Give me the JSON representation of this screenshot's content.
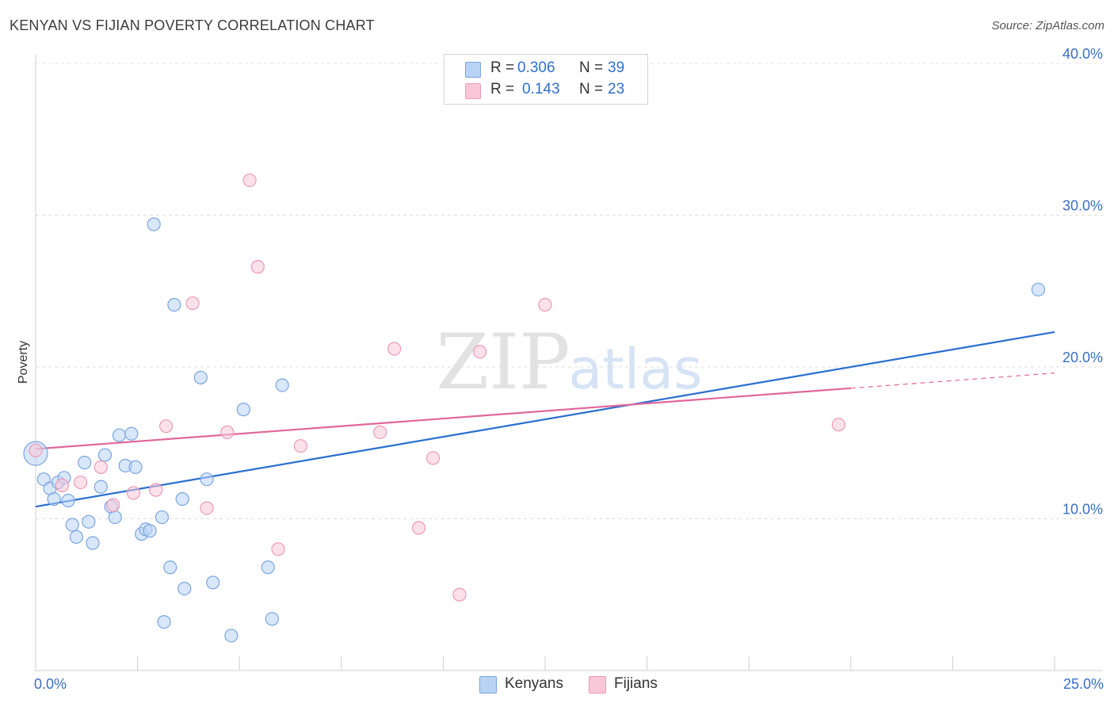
{
  "header": {
    "title": "KENYAN VS FIJIAN POVERTY CORRELATION CHART",
    "source": "Source: ZipAtlas.com"
  },
  "watermark": {
    "zip": "ZIP",
    "atlas": "atlas"
  },
  "legend_top": {
    "rows": [
      {
        "r_label": "R =",
        "r_value": "0.306",
        "n_label": "N =",
        "n_value": "39"
      },
      {
        "r_label": "R =",
        "r_value": "0.143",
        "n_label": "N =",
        "n_value": "23"
      }
    ]
  },
  "legend_bottom": {
    "items": [
      {
        "label": "Kenyans"
      },
      {
        "label": "Fijians"
      }
    ]
  },
  "colors": {
    "kenyan_fill": "#b9d3f5",
    "kenyan_stroke": "#7aa5e0",
    "kenyan_line": "#2a6fd0",
    "fijian_fill": "#f9c8d8",
    "fijian_stroke": "#ec9ab5",
    "fijian_line": "#e0679a",
    "axis_text": "#3a6fc4"
  },
  "chart_data": {
    "type": "scatter",
    "title": "KENYAN VS FIJIAN POVERTY CORRELATION CHART",
    "xlabel": "",
    "ylabel": "Poverty",
    "xlim": [
      0,
      25
    ],
    "ylim": [
      0,
      40
    ],
    "x_tick_labels": {
      "min": "0.0%",
      "max": "25.0%"
    },
    "y_ticks": [
      {
        "value": 10,
        "label": "10.0%"
      },
      {
        "value": 20,
        "label": "20.0%"
      },
      {
        "value": 30,
        "label": "30.0%"
      },
      {
        "value": 40,
        "label": "40.0%"
      }
    ],
    "series": [
      {
        "name": "Kenyans",
        "r": 0.306,
        "n": 39,
        "trend": {
          "x0": 0,
          "y0": 10.8,
          "x1": 25,
          "y1": 22.3,
          "solid_until": 25
        },
        "points": [
          {
            "x": 0.0,
            "y": 14.3,
            "big": true
          },
          {
            "x": 0.2,
            "y": 12.6
          },
          {
            "x": 0.35,
            "y": 12.0
          },
          {
            "x": 0.45,
            "y": 11.3
          },
          {
            "x": 0.55,
            "y": 12.4
          },
          {
            "x": 0.7,
            "y": 12.7
          },
          {
            "x": 0.8,
            "y": 11.2
          },
          {
            "x": 0.9,
            "y": 9.6
          },
          {
            "x": 1.0,
            "y": 8.8
          },
          {
            "x": 1.2,
            "y": 13.7
          },
          {
            "x": 1.3,
            "y": 9.8
          },
          {
            "x": 1.4,
            "y": 8.4
          },
          {
            "x": 1.6,
            "y": 12.1
          },
          {
            "x": 1.7,
            "y": 14.2
          },
          {
            "x": 1.85,
            "y": 10.8
          },
          {
            "x": 1.95,
            "y": 10.1
          },
          {
            "x": 2.05,
            "y": 15.5
          },
          {
            "x": 2.2,
            "y": 13.5
          },
          {
            "x": 2.35,
            "y": 15.6
          },
          {
            "x": 2.45,
            "y": 13.4
          },
          {
            "x": 2.6,
            "y": 9.0
          },
          {
            "x": 2.7,
            "y": 9.3
          },
          {
            "x": 2.8,
            "y": 9.2
          },
          {
            "x": 2.9,
            "y": 29.4
          },
          {
            "x": 3.1,
            "y": 10.1
          },
          {
            "x": 3.15,
            "y": 3.2
          },
          {
            "x": 3.3,
            "y": 6.8
          },
          {
            "x": 3.4,
            "y": 24.1
          },
          {
            "x": 3.6,
            "y": 11.3
          },
          {
            "x": 3.65,
            "y": 5.4
          },
          {
            "x": 4.05,
            "y": 19.3
          },
          {
            "x": 4.2,
            "y": 12.6
          },
          {
            "x": 4.35,
            "y": 5.8
          },
          {
            "x": 4.8,
            "y": 2.3
          },
          {
            "x": 5.1,
            "y": 17.2
          },
          {
            "x": 5.7,
            "y": 6.8
          },
          {
            "x": 5.8,
            "y": 3.4
          },
          {
            "x": 6.05,
            "y": 18.8
          },
          {
            "x": 24.6,
            "y": 25.1
          }
        ]
      },
      {
        "name": "Fijians",
        "r": 0.143,
        "n": 23,
        "trend": {
          "x0": 0,
          "y0": 14.6,
          "x1": 25,
          "y1": 19.6,
          "solid_until": 20
        },
        "points": [
          {
            "x": 0.0,
            "y": 14.5
          },
          {
            "x": 0.65,
            "y": 12.2
          },
          {
            "x": 1.1,
            "y": 12.4
          },
          {
            "x": 1.6,
            "y": 13.4
          },
          {
            "x": 1.9,
            "y": 10.9
          },
          {
            "x": 2.4,
            "y": 11.7
          },
          {
            "x": 2.95,
            "y": 11.9
          },
          {
            "x": 3.2,
            "y": 16.1
          },
          {
            "x": 3.85,
            "y": 24.2
          },
          {
            "x": 4.2,
            "y": 10.7
          },
          {
            "x": 4.7,
            "y": 15.7
          },
          {
            "x": 5.25,
            "y": 32.3
          },
          {
            "x": 5.45,
            "y": 26.6
          },
          {
            "x": 5.95,
            "y": 8.0
          },
          {
            "x": 6.5,
            "y": 14.8
          },
          {
            "x": 8.45,
            "y": 15.7
          },
          {
            "x": 8.8,
            "y": 21.2
          },
          {
            "x": 9.4,
            "y": 9.4
          },
          {
            "x": 9.75,
            "y": 14.0
          },
          {
            "x": 10.4,
            "y": 5.0
          },
          {
            "x": 10.9,
            "y": 21.0
          },
          {
            "x": 12.5,
            "y": 24.1
          },
          {
            "x": 19.7,
            "y": 16.2
          }
        ]
      }
    ]
  }
}
